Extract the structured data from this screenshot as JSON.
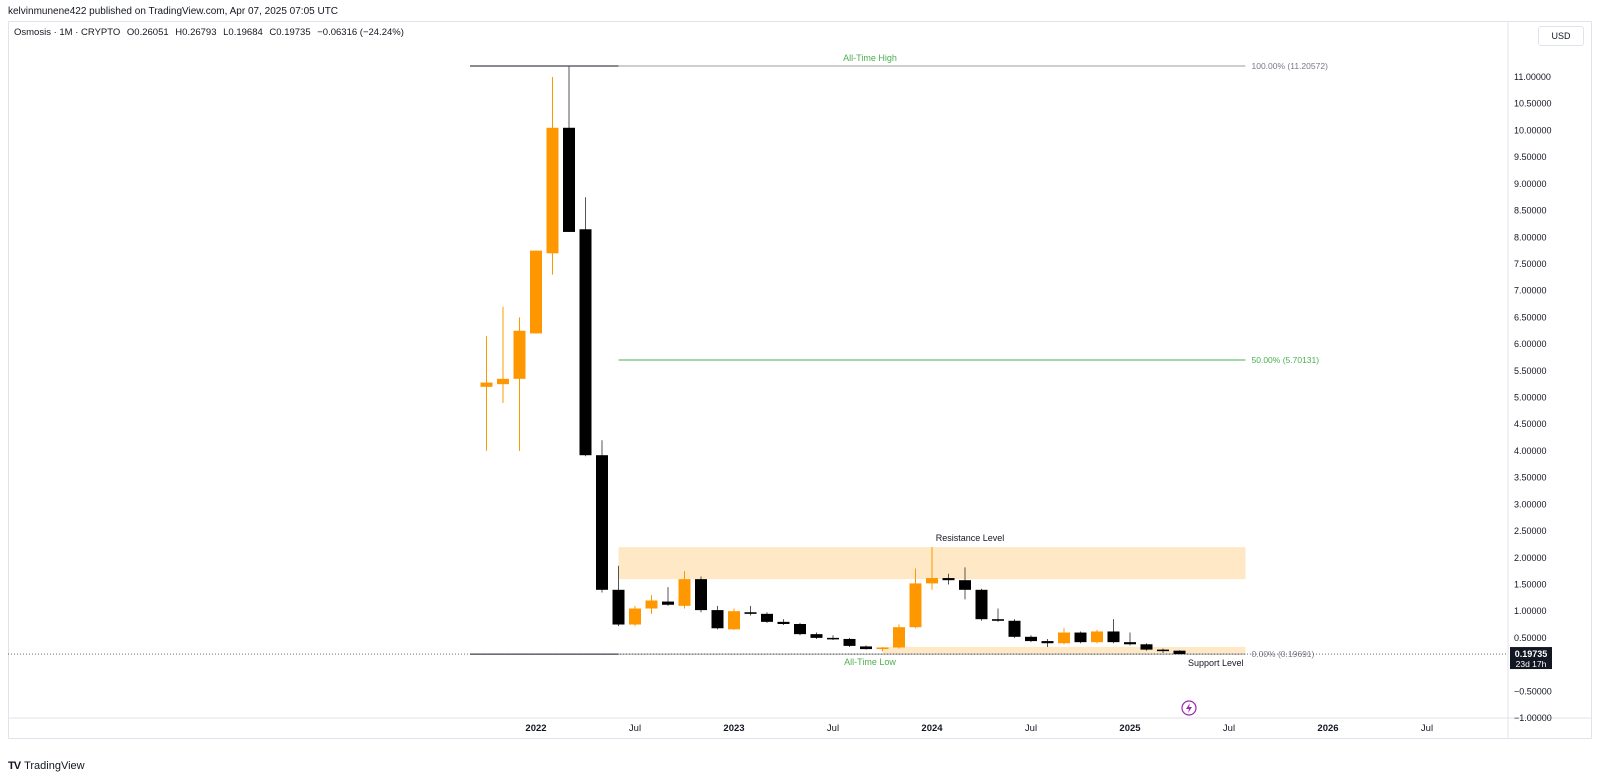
{
  "publisher": {
    "text": "kelvinmunene422 published on TradingView.com, Apr 07, 2025 07:05 UTC"
  },
  "legend": {
    "symbol": "Osmosis · 1M · CRYPTO",
    "open": "O0.26051",
    "high": "H0.26793",
    "low": "L0.19684",
    "close": "C0.19735",
    "change": "−0.06316 (−24.24%)"
  },
  "currency_label": "USD",
  "footer": {
    "brand": "TradingView"
  },
  "colors": {
    "up": "#ff9800",
    "down": "#000000",
    "fib_line": "#4caf50",
    "zone_fill": "#ffe0b2",
    "label_green": "#4caf50"
  },
  "chart_data": {
    "type": "candlestick",
    "ylim": [
      -1.0,
      11.45
    ],
    "x_months": [
      "2021-09",
      "2025-12"
    ],
    "y_ticks": [
      "11.00000",
      "10.50000",
      "10.00000",
      "9.50000",
      "9.00000",
      "8.50000",
      "8.00000",
      "7.50000",
      "7.00000",
      "6.50000",
      "6.00000",
      "5.50000",
      "5.00000",
      "4.50000",
      "4.00000",
      "3.50000",
      "3.00000",
      "2.50000",
      "2.00000",
      "1.50000",
      "1.00000",
      "0.50000",
      "0.00000",
      "−0.50000",
      "−1.00000"
    ],
    "y_tick_values": [
      11,
      10.5,
      10,
      9.5,
      9,
      8.5,
      8,
      7.5,
      7,
      6.5,
      6,
      5.5,
      5,
      4.5,
      4,
      3.5,
      3,
      2.5,
      2,
      1.5,
      1,
      0.5,
      0,
      -0.5,
      -1
    ],
    "x_ticks": [
      {
        "label": "2022",
        "month": "2022-01"
      },
      {
        "label": "Jul",
        "month": "2022-07"
      },
      {
        "label": "2023",
        "month": "2023-01"
      },
      {
        "label": "Jul",
        "month": "2023-07"
      },
      {
        "label": "2024",
        "month": "2024-01"
      },
      {
        "label": "Jul",
        "month": "2024-07"
      },
      {
        "label": "2025",
        "month": "2025-01"
      },
      {
        "label": "Jul",
        "month": "2025-07"
      },
      {
        "label": "2026",
        "month": "2026-01"
      },
      {
        "label": "Jul",
        "month": "2026-07"
      }
    ],
    "candles": [
      {
        "t": "2021-10",
        "o": 5.2,
        "h": 6.15,
        "l": 4.0,
        "c": 5.28
      },
      {
        "t": "2021-11",
        "o": 5.25,
        "h": 6.7,
        "l": 4.9,
        "c": 5.35
      },
      {
        "t": "2021-12",
        "o": 5.35,
        "h": 6.5,
        "l": 4.0,
        "c": 6.25
      },
      {
        "t": "2022-01",
        "o": 6.2,
        "h": 7.75,
        "l": 6.2,
        "c": 7.75
      },
      {
        "t": "2022-02",
        "o": 7.7,
        "h": 11.0,
        "l": 7.3,
        "c": 10.05
      },
      {
        "t": "2022-03",
        "o": 10.05,
        "h": 11.206,
        "l": 8.1,
        "c": 8.1
      },
      {
        "t": "2022-04",
        "o": 8.15,
        "h": 8.75,
        "l": 3.9,
        "c": 3.92
      },
      {
        "t": "2022-05",
        "o": 3.92,
        "h": 4.2,
        "l": 1.35,
        "c": 1.4
      },
      {
        "t": "2022-06",
        "o": 1.4,
        "h": 1.85,
        "l": 0.72,
        "c": 0.75
      },
      {
        "t": "2022-07",
        "o": 0.75,
        "h": 1.1,
        "l": 0.72,
        "c": 1.05
      },
      {
        "t": "2022-08",
        "o": 1.05,
        "h": 1.3,
        "l": 0.95,
        "c": 1.2
      },
      {
        "t": "2022-09",
        "o": 1.18,
        "h": 1.45,
        "l": 1.1,
        "c": 1.12
      },
      {
        "t": "2022-10",
        "o": 1.1,
        "h": 1.75,
        "l": 1.05,
        "c": 1.6
      },
      {
        "t": "2022-11",
        "o": 1.6,
        "h": 1.65,
        "l": 0.98,
        "c": 1.02
      },
      {
        "t": "2022-12",
        "o": 1.02,
        "h": 1.1,
        "l": 0.66,
        "c": 0.68
      },
      {
        "t": "2023-01",
        "o": 0.66,
        "h": 1.05,
        "l": 0.65,
        "c": 1.0
      },
      {
        "t": "2023-02",
        "o": 0.98,
        "h": 1.1,
        "l": 0.92,
        "c": 0.95
      },
      {
        "t": "2023-03",
        "o": 0.95,
        "h": 0.98,
        "l": 0.78,
        "c": 0.8
      },
      {
        "t": "2023-04",
        "o": 0.8,
        "h": 0.85,
        "l": 0.74,
        "c": 0.76
      },
      {
        "t": "2023-05",
        "o": 0.76,
        "h": 0.78,
        "l": 0.55,
        "c": 0.57
      },
      {
        "t": "2023-06",
        "o": 0.57,
        "h": 0.6,
        "l": 0.48,
        "c": 0.5
      },
      {
        "t": "2023-07",
        "o": 0.5,
        "h": 0.55,
        "l": 0.46,
        "c": 0.48
      },
      {
        "t": "2023-08",
        "o": 0.48,
        "h": 0.5,
        "l": 0.33,
        "c": 0.35
      },
      {
        "t": "2023-09",
        "o": 0.34,
        "h": 0.36,
        "l": 0.28,
        "c": 0.29
      },
      {
        "t": "2023-10",
        "o": 0.29,
        "h": 0.33,
        "l": 0.25,
        "c": 0.32
      },
      {
        "t": "2023-11",
        "o": 0.32,
        "h": 0.75,
        "l": 0.3,
        "c": 0.7
      },
      {
        "t": "2023-12",
        "o": 0.7,
        "h": 1.8,
        "l": 0.68,
        "c": 1.52
      },
      {
        "t": "2024-01",
        "o": 1.52,
        "h": 2.2,
        "l": 1.4,
        "c": 1.62
      },
      {
        "t": "2024-02",
        "o": 1.62,
        "h": 1.7,
        "l": 1.5,
        "c": 1.58
      },
      {
        "t": "2024-03",
        "o": 1.58,
        "h": 1.82,
        "l": 1.22,
        "c": 1.4
      },
      {
        "t": "2024-04",
        "o": 1.4,
        "h": 1.42,
        "l": 0.82,
        "c": 0.85
      },
      {
        "t": "2024-05",
        "o": 0.85,
        "h": 1.05,
        "l": 0.8,
        "c": 0.82
      },
      {
        "t": "2024-06",
        "o": 0.82,
        "h": 0.85,
        "l": 0.5,
        "c": 0.52
      },
      {
        "t": "2024-07",
        "o": 0.52,
        "h": 0.55,
        "l": 0.42,
        "c": 0.44
      },
      {
        "t": "2024-08",
        "o": 0.44,
        "h": 0.48,
        "l": 0.33,
        "c": 0.4
      },
      {
        "t": "2024-09",
        "o": 0.4,
        "h": 0.68,
        "l": 0.38,
        "c": 0.6
      },
      {
        "t": "2024-10",
        "o": 0.6,
        "h": 0.62,
        "l": 0.4,
        "c": 0.42
      },
      {
        "t": "2024-11",
        "o": 0.42,
        "h": 0.65,
        "l": 0.4,
        "c": 0.62
      },
      {
        "t": "2024-12",
        "o": 0.62,
        "h": 0.85,
        "l": 0.4,
        "c": 0.42
      },
      {
        "t": "2025-01",
        "o": 0.42,
        "h": 0.6,
        "l": 0.36,
        "c": 0.38
      },
      {
        "t": "2025-02",
        "o": 0.38,
        "h": 0.4,
        "l": 0.26,
        "c": 0.28
      },
      {
        "t": "2025-03",
        "o": 0.28,
        "h": 0.3,
        "l": 0.22,
        "c": 0.26
      },
      {
        "t": "2025-04",
        "o": 0.26051,
        "h": 0.26793,
        "l": 0.19684,
        "c": 0.19735
      }
    ],
    "fib": {
      "start_month": "2021-09",
      "extend_start_month": "2022-06",
      "end_month": "2025-08",
      "levels": [
        {
          "value": 11.20572,
          "label": "100.00% (11.20572)"
        },
        {
          "value": 5.70131,
          "label": "50.00% (5.70131)"
        },
        {
          "value": 0.19691,
          "label": "0.00% (0.19691)"
        }
      ]
    },
    "zones": [
      {
        "label": "Resistance Level",
        "from": 1.6,
        "to": 2.2,
        "start_month": "2022-06",
        "end_month": "2025-08"
      },
      {
        "label": "Support Level",
        "from": 0.19691,
        "to": 0.33,
        "start_month": "2023-10",
        "end_month": "2025-08"
      }
    ],
    "annotations": {
      "ath": "All-Time High",
      "atl": "All-Time Low"
    },
    "last_price": {
      "value": 0.19735,
      "label": "0.19735",
      "countdown": "23d 17h"
    }
  }
}
